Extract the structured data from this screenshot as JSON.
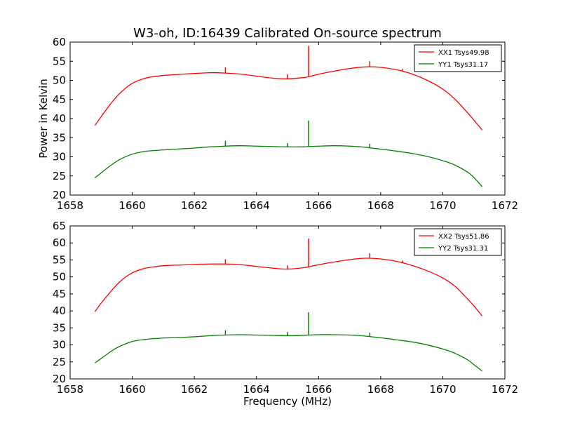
{
  "figure": {
    "title": "W3-oh, ID:16439 Calibrated On-source spectrum"
  },
  "chart_data": [
    {
      "type": "line",
      "title": "W3-oh, ID:16439 Calibrated On-source spectrum",
      "xlabel": "",
      "ylabel": "Power in Kelvin",
      "xlim": [
        1658,
        1672
      ],
      "ylim": [
        20,
        60
      ],
      "xticks": [
        1658,
        1660,
        1662,
        1664,
        1666,
        1668,
        1670,
        1672
      ],
      "yticks": [
        20,
        25,
        30,
        35,
        40,
        45,
        50,
        55,
        60
      ],
      "legend_position": "top-right",
      "grid": false,
      "series": [
        {
          "name": "XX1 Tsys49.98",
          "color": "#ff0000",
          "x": [
            1658.8,
            1659.0,
            1659.3,
            1659.6,
            1660.0,
            1660.4,
            1660.8,
            1661.2,
            1661.6,
            1662.0,
            1662.5,
            1663.0,
            1663.5,
            1664.0,
            1664.5,
            1665.0,
            1665.5,
            1665.7,
            1666.0,
            1666.5,
            1667.0,
            1667.5,
            1668.0,
            1668.5,
            1669.0,
            1669.5,
            1670.0,
            1670.4,
            1670.8,
            1671.0,
            1671.27
          ],
          "y": [
            38.2,
            40.5,
            43.8,
            46.6,
            49.2,
            50.5,
            51.1,
            51.4,
            51.6,
            51.8,
            52.0,
            51.9,
            51.6,
            51.1,
            50.6,
            50.4,
            50.7,
            51.0,
            51.6,
            52.4,
            53.1,
            53.5,
            53.4,
            52.8,
            51.7,
            50.0,
            47.7,
            45.0,
            41.5,
            39.6,
            37.0
          ]
        },
        {
          "name": "YY1 Tsys31.17",
          "color": "#008000",
          "x": [
            1658.8,
            1659.0,
            1659.3,
            1659.6,
            1660.0,
            1660.4,
            1660.8,
            1661.2,
            1661.6,
            1662.0,
            1662.5,
            1663.0,
            1663.5,
            1664.0,
            1664.5,
            1665.0,
            1665.5,
            1665.7,
            1666.0,
            1666.5,
            1667.0,
            1667.5,
            1668.0,
            1668.5,
            1669.0,
            1669.5,
            1670.0,
            1670.4,
            1670.8,
            1671.0,
            1671.27
          ],
          "y": [
            24.5,
            25.8,
            27.7,
            29.3,
            30.7,
            31.4,
            31.7,
            31.9,
            32.1,
            32.3,
            32.6,
            32.8,
            32.9,
            32.8,
            32.7,
            32.6,
            32.6,
            32.7,
            32.8,
            32.9,
            32.8,
            32.5,
            32.0,
            31.5,
            30.9,
            30.1,
            29.0,
            27.8,
            26.0,
            24.6,
            22.2
          ]
        }
      ],
      "spikes": [
        {
          "series": "XX1 Tsys49.98",
          "x": 1663.0,
          "y": 53.4
        },
        {
          "series": "XX1 Tsys49.98",
          "x": 1665.0,
          "y": 51.6
        },
        {
          "series": "XX1 Tsys49.98",
          "x": 1665.68,
          "y": 59.0
        },
        {
          "series": "XX1 Tsys49.98",
          "x": 1667.65,
          "y": 55.0
        },
        {
          "series": "XX1 Tsys49.98",
          "x": 1668.7,
          "y": 53.0
        },
        {
          "series": "YY1 Tsys31.17",
          "x": 1663.0,
          "y": 34.2
        },
        {
          "series": "YY1 Tsys31.17",
          "x": 1665.0,
          "y": 33.6
        },
        {
          "series": "YY1 Tsys31.17",
          "x": 1665.68,
          "y": 39.5
        },
        {
          "series": "YY1 Tsys31.17",
          "x": 1667.65,
          "y": 33.4
        }
      ]
    },
    {
      "type": "line",
      "title": "",
      "xlabel": "Frequency (MHz)",
      "ylabel": "",
      "xlim": [
        1658,
        1672
      ],
      "ylim": [
        20,
        65
      ],
      "xticks": [
        1658,
        1660,
        1662,
        1664,
        1666,
        1668,
        1670,
        1672
      ],
      "yticks": [
        20,
        25,
        30,
        35,
        40,
        45,
        50,
        55,
        60,
        65
      ],
      "legend_position": "top-right",
      "grid": false,
      "series": [
        {
          "name": "XX2 Tsys51.86",
          "color": "#ff0000",
          "x": [
            1658.8,
            1659.0,
            1659.3,
            1659.6,
            1660.0,
            1660.4,
            1660.8,
            1661.2,
            1661.6,
            1662.0,
            1662.5,
            1663.0,
            1663.5,
            1664.0,
            1664.5,
            1665.0,
            1665.5,
            1665.7,
            1666.0,
            1666.5,
            1667.0,
            1667.5,
            1668.0,
            1668.5,
            1669.0,
            1669.5,
            1670.0,
            1670.4,
            1670.8,
            1671.0,
            1671.27
          ],
          "y": [
            39.8,
            42.3,
            45.6,
            48.6,
            51.2,
            52.5,
            53.1,
            53.4,
            53.5,
            53.7,
            53.8,
            53.8,
            53.6,
            53.1,
            52.6,
            52.3,
            52.7,
            53.0,
            53.6,
            54.4,
            55.1,
            55.5,
            55.3,
            54.6,
            53.4,
            51.8,
            49.7,
            47.2,
            43.5,
            41.5,
            38.5
          ]
        },
        {
          "name": "YY2 Tsys31.31",
          "color": "#008000",
          "x": [
            1658.8,
            1659.0,
            1659.3,
            1659.6,
            1660.0,
            1660.4,
            1660.8,
            1661.2,
            1661.6,
            1662.0,
            1662.5,
            1663.0,
            1663.5,
            1664.0,
            1664.5,
            1665.0,
            1665.5,
            1665.7,
            1666.0,
            1666.5,
            1667.0,
            1667.5,
            1668.0,
            1668.5,
            1669.0,
            1669.5,
            1670.0,
            1670.4,
            1670.8,
            1671.0,
            1671.27
          ],
          "y": [
            24.7,
            26.0,
            28.0,
            29.6,
            31.0,
            31.6,
            31.9,
            32.1,
            32.2,
            32.4,
            32.7,
            32.9,
            33.0,
            32.9,
            32.8,
            32.7,
            32.8,
            32.9,
            33.0,
            33.0,
            32.9,
            32.6,
            32.1,
            31.5,
            30.9,
            30.0,
            28.8,
            27.5,
            25.6,
            24.2,
            22.3
          ]
        }
      ],
      "spikes": [
        {
          "series": "XX2 Tsys51.86",
          "x": 1663.0,
          "y": 55.2
        },
        {
          "series": "XX2 Tsys51.86",
          "x": 1665.0,
          "y": 53.4
        },
        {
          "series": "XX2 Tsys51.86",
          "x": 1665.68,
          "y": 61.3
        },
        {
          "series": "XX2 Tsys51.86",
          "x": 1667.65,
          "y": 57.0
        },
        {
          "series": "XX2 Tsys51.86",
          "x": 1668.7,
          "y": 54.8
        },
        {
          "series": "YY2 Tsys31.31",
          "x": 1663.0,
          "y": 34.3
        },
        {
          "series": "YY2 Tsys31.31",
          "x": 1665.0,
          "y": 33.8
        },
        {
          "series": "YY2 Tsys31.31",
          "x": 1665.68,
          "y": 39.6
        },
        {
          "series": "YY2 Tsys31.31",
          "x": 1667.65,
          "y": 33.6
        }
      ]
    }
  ]
}
